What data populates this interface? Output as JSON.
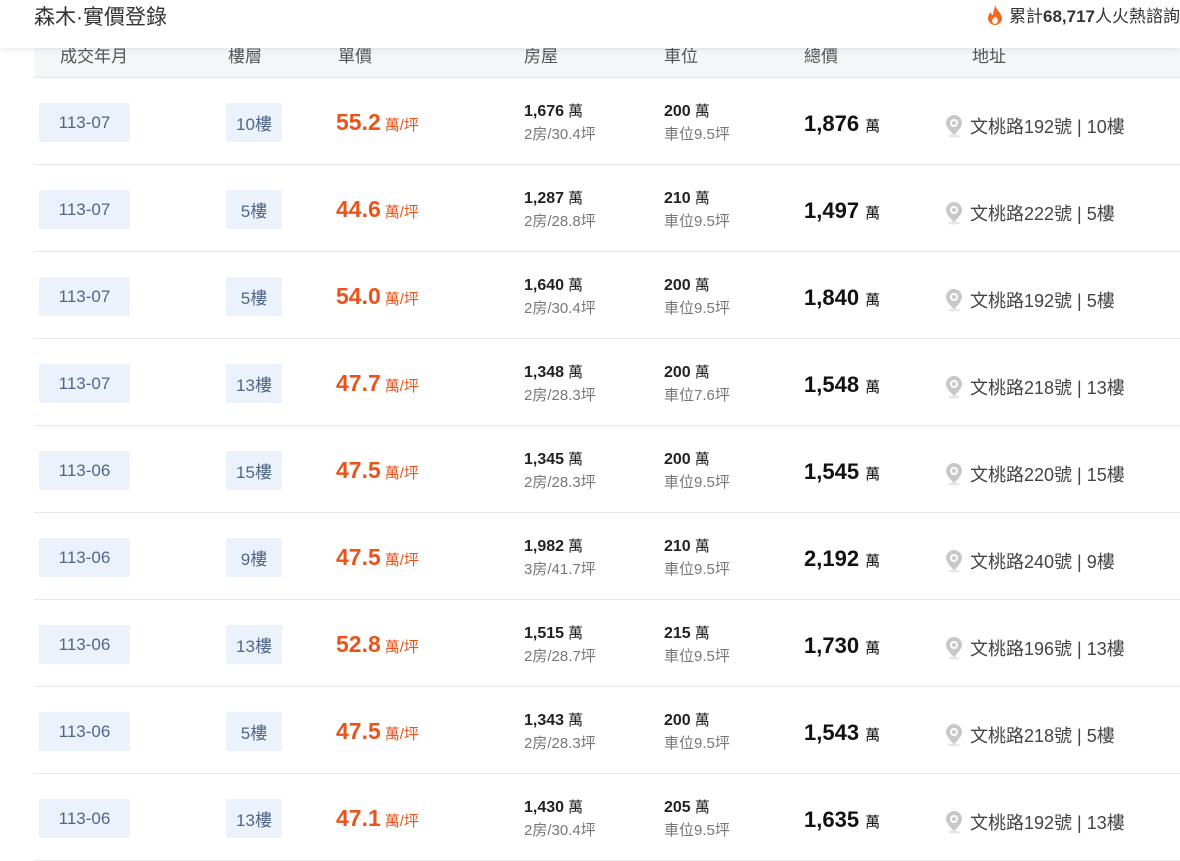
{
  "header": {
    "title": "森木·實價登錄",
    "hot_prefix": "累計",
    "hot_count": "68,717",
    "hot_suffix": "人火熱諮詢"
  },
  "columns": [
    "成交年月",
    "樓層",
    "單價",
    "房屋",
    "車位",
    "總價",
    "地址"
  ],
  "unit_price_suffix": "萬/坪",
  "wan": "萬",
  "rows": [
    {
      "ym": "113-07",
      "floor": "10樓",
      "unit": "55.2",
      "house": "1,676",
      "house_desc": "2房/30.4坪",
      "park": "200",
      "park_desc": "車位9.5坪",
      "total": "1,876",
      "addr": "文桃路192號 | 10樓"
    },
    {
      "ym": "113-07",
      "floor": "5樓",
      "unit": "44.6",
      "house": "1,287",
      "house_desc": "2房/28.8坪",
      "park": "210",
      "park_desc": "車位9.5坪",
      "total": "1,497",
      "addr": "文桃路222號 | 5樓"
    },
    {
      "ym": "113-07",
      "floor": "5樓",
      "unit": "54.0",
      "house": "1,640",
      "house_desc": "2房/30.4坪",
      "park": "200",
      "park_desc": "車位9.5坪",
      "total": "1,840",
      "addr": "文桃路192號 | 5樓"
    },
    {
      "ym": "113-07",
      "floor": "13樓",
      "unit": "47.7",
      "house": "1,348",
      "house_desc": "2房/28.3坪",
      "park": "200",
      "park_desc": "車位7.6坪",
      "total": "1,548",
      "addr": "文桃路218號 | 13樓"
    },
    {
      "ym": "113-06",
      "floor": "15樓",
      "unit": "47.5",
      "house": "1,345",
      "house_desc": "2房/28.3坪",
      "park": "200",
      "park_desc": "車位9.5坪",
      "total": "1,545",
      "addr": "文桃路220號 | 15樓"
    },
    {
      "ym": "113-06",
      "floor": "9樓",
      "unit": "47.5",
      "house": "1,982",
      "house_desc": "3房/41.7坪",
      "park": "210",
      "park_desc": "車位9.5坪",
      "total": "2,192",
      "addr": "文桃路240號 | 9樓"
    },
    {
      "ym": "113-06",
      "floor": "13樓",
      "unit": "52.8",
      "house": "1,515",
      "house_desc": "2房/28.7坪",
      "park": "215",
      "park_desc": "車位9.5坪",
      "total": "1,730",
      "addr": "文桃路196號 | 13樓"
    },
    {
      "ym": "113-06",
      "floor": "5樓",
      "unit": "47.5",
      "house": "1,343",
      "house_desc": "2房/28.3坪",
      "park": "200",
      "park_desc": "車位9.5坪",
      "total": "1,543",
      "addr": "文桃路218號 | 5樓"
    },
    {
      "ym": "113-06",
      "floor": "13樓",
      "unit": "47.1",
      "house": "1,430",
      "house_desc": "2房/30.4坪",
      "park": "205",
      "park_desc": "車位9.5坪",
      "total": "1,635",
      "addr": "文桃路192號 | 13樓"
    }
  ],
  "colors": {
    "accent": "#e8541c",
    "chip_bg": "#ebf2fc",
    "chip_text": "#4f6687"
  }
}
